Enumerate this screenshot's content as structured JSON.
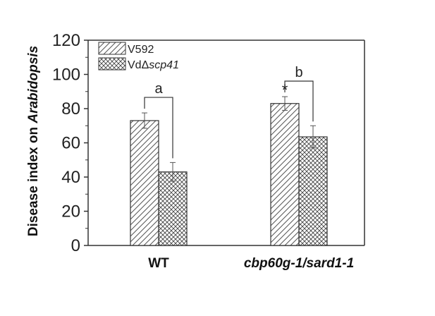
{
  "chart_data": {
    "type": "bar",
    "ylabel_prefix": "Disease index on ",
    "ylabel_italic": "Arabidopsis",
    "xlabel": "",
    "ylim": [
      0,
      120
    ],
    "yticks": [
      "0",
      "20",
      "40",
      "60",
      "80",
      "100",
      "120"
    ],
    "categories": [
      {
        "label": "WT",
        "italic": false
      },
      {
        "label": "cbp60g-1/sard1-1",
        "italic": true
      }
    ],
    "series": [
      {
        "name_prefix": "V592",
        "name_italic": "",
        "pattern": "diagonal",
        "values": [
          73,
          83
        ],
        "errors": [
          4.5,
          4
        ]
      },
      {
        "name_prefix": "VdΔ",
        "name_italic": "scp41",
        "pattern": "crosshatch",
        "values": [
          43,
          63.5
        ],
        "errors": [
          5.5,
          6.5
        ]
      }
    ],
    "annotations": [
      {
        "text": "a",
        "category_index": 0
      },
      {
        "text": "b",
        "category_index": 1
      }
    ],
    "significance": [
      {
        "text": "*",
        "category_index": 1,
        "series_index": 0
      }
    ],
    "legend_position": "top-left",
    "grid": false
  }
}
